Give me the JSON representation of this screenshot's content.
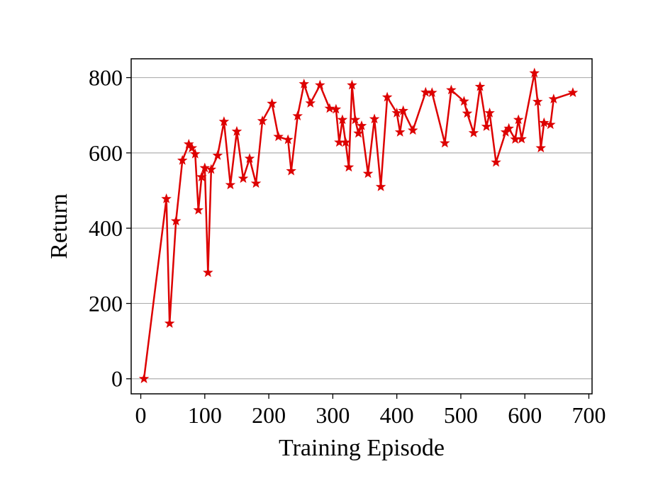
{
  "chart_data": {
    "type": "line",
    "xlabel": "Training Episode",
    "ylabel": "Return",
    "xlim": [
      -15,
      705
    ],
    "ylim": [
      -40,
      850
    ],
    "xticks": [
      0,
      100,
      200,
      300,
      400,
      500,
      600,
      700
    ],
    "xtick_labels": [
      "0",
      "100",
      "200",
      "300",
      "400",
      "500",
      "600",
      "700"
    ],
    "yticks": [
      0,
      200,
      400,
      600,
      800
    ],
    "ytick_labels": [
      "0",
      "200",
      "400",
      "600",
      "800"
    ],
    "grid": "horizontal",
    "legend": "none",
    "series": [
      {
        "color": "#dd0000",
        "marker": "star",
        "x": [
          5,
          40,
          45,
          55,
          65,
          75,
          80,
          85,
          90,
          95,
          100,
          105,
          110,
          120,
          130,
          140,
          150,
          160,
          170,
          180,
          190,
          205,
          215,
          230,
          235,
          245,
          255,
          265,
          280,
          295,
          305,
          310,
          315,
          320,
          325,
          330,
          335,
          340,
          345,
          355,
          365,
          375,
          385,
          400,
          405,
          410,
          425,
          445,
          455,
          475,
          485,
          505,
          510,
          520,
          530,
          540,
          545,
          555,
          570,
          575,
          585,
          590,
          595,
          615,
          620,
          625,
          630,
          640,
          645,
          675
        ],
        "y": [
          0,
          478,
          147,
          419,
          580,
          623,
          613,
          597,
          448,
          536,
          560,
          282,
          556,
          593,
          683,
          515,
          657,
          532,
          585,
          519,
          685,
          731,
          643,
          635,
          552,
          698,
          783,
          732,
          780,
          718,
          716,
          628,
          688,
          628,
          562,
          780,
          688,
          652,
          672,
          545,
          690,
          510,
          748,
          706,
          655,
          712,
          660,
          761,
          760,
          626,
          767,
          737,
          705,
          653,
          776,
          670,
          706,
          575,
          655,
          665,
          636,
          688,
          637,
          812,
          736,
          613,
          680,
          675,
          743,
          760
        ]
      }
    ]
  }
}
